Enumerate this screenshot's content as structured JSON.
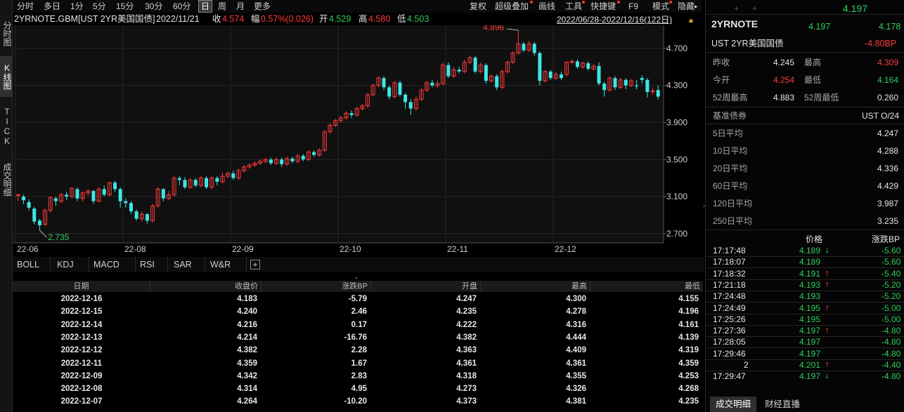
{
  "left_tabs": [
    "分时图",
    "K线图",
    "TICK",
    "成交明细"
  ],
  "toolbar": {
    "periods": [
      "分时",
      "多日",
      "1分",
      "5分",
      "15分",
      "30分",
      "60分",
      "日",
      "周",
      "月",
      "更多"
    ],
    "active_period": "日",
    "tools": [
      "复权",
      "超级叠加",
      "画线",
      "工具",
      "快捷键",
      "F9",
      "模式",
      "隐藏"
    ]
  },
  "info": {
    "symbol": "2YRNOTE.GBM[UST 2YR美国国债]",
    "date": "2022/11/21",
    "close_label": "收",
    "close": "4.574",
    "change_label": "幅",
    "change": "0.57%(0.026)",
    "open_label": "开",
    "open": "4.529",
    "high_label": "高",
    "high": "4.580",
    "low_label": "低",
    "low": "4.503",
    "range": "2022/06/28-2022/12/16(122日)"
  },
  "chart_data": {
    "type": "candlestick",
    "y_ticks": [
      "4.700",
      "4.300",
      "3.900",
      "3.500",
      "3.100",
      "2.700"
    ],
    "ylim": [
      2.6,
      4.95
    ],
    "x_ticks": [
      "22-06",
      "22-08",
      "22-09",
      "22-10",
      "22-11",
      "22-12"
    ],
    "max_label": "4.896",
    "min_label": "2.735",
    "candles": [
      [
        3.11,
        3.12,
        3.05,
        3.13
      ],
      [
        3.1,
        3.06,
        3.02,
        3.12
      ],
      [
        3.04,
        2.98,
        2.95,
        3.07
      ],
      [
        2.97,
        2.83,
        2.8,
        2.99
      ],
      [
        2.84,
        2.79,
        2.735,
        2.86
      ],
      [
        2.8,
        2.95,
        2.78,
        2.97
      ],
      [
        2.95,
        3.09,
        2.93,
        3.1
      ],
      [
        3.08,
        3.05,
        3.0,
        3.1
      ],
      [
        3.05,
        3.12,
        3.03,
        3.14
      ],
      [
        3.12,
        3.1,
        3.06,
        3.15
      ],
      [
        3.1,
        3.19,
        3.08,
        3.2
      ],
      [
        3.18,
        3.08,
        3.05,
        3.2
      ],
      [
        3.08,
        3.14,
        3.05,
        3.16
      ],
      [
        3.14,
        3.16,
        3.11,
        3.18
      ],
      [
        3.16,
        3.05,
        3.02,
        3.17
      ],
      [
        3.05,
        3.18,
        3.04,
        3.2
      ],
      [
        3.18,
        3.12,
        3.1,
        3.22
      ],
      [
        3.12,
        3.25,
        3.1,
        3.26
      ],
      [
        3.25,
        3.18,
        3.15,
        3.27
      ],
      [
        3.18,
        3.05,
        2.98,
        3.2
      ],
      [
        3.05,
        3.03,
        2.98,
        3.08
      ],
      [
        3.03,
        2.94,
        2.91,
        3.05
      ],
      [
        2.94,
        2.86,
        2.84,
        2.96
      ],
      [
        2.86,
        2.91,
        2.83,
        2.94
      ],
      [
        2.91,
        2.84,
        2.81,
        2.92
      ],
      [
        2.84,
        3.0,
        2.82,
        3.02
      ],
      [
        3.0,
        3.18,
        2.98,
        3.2
      ],
      [
        3.18,
        3.08,
        3.05,
        3.19
      ],
      [
        3.08,
        3.12,
        3.06,
        3.16
      ],
      [
        3.12,
        3.3,
        3.1,
        3.32
      ],
      [
        3.3,
        3.28,
        3.22,
        3.32
      ],
      [
        3.28,
        3.2,
        3.18,
        3.31
      ],
      [
        3.2,
        3.28,
        3.18,
        3.3
      ],
      [
        3.28,
        3.22,
        3.2,
        3.3
      ],
      [
        3.22,
        3.3,
        3.2,
        3.32
      ],
      [
        3.3,
        3.2,
        3.18,
        3.32
      ],
      [
        3.2,
        3.3,
        3.18,
        3.32
      ],
      [
        3.3,
        3.26,
        3.22,
        3.32
      ],
      [
        3.26,
        3.32,
        3.24,
        3.36
      ],
      [
        3.32,
        3.35,
        3.3,
        3.37
      ],
      [
        3.35,
        3.3,
        3.28,
        3.38
      ],
      [
        3.3,
        3.38,
        3.28,
        3.4
      ],
      [
        3.38,
        3.42,
        3.36,
        3.44
      ],
      [
        3.42,
        3.44,
        3.4,
        3.46
      ],
      [
        3.44,
        3.46,
        3.42,
        3.48
      ],
      [
        3.46,
        3.48,
        3.44,
        3.5
      ],
      [
        3.48,
        3.5,
        3.46,
        3.52
      ],
      [
        3.5,
        3.46,
        3.44,
        3.52
      ],
      [
        3.46,
        3.5,
        3.44,
        3.52
      ],
      [
        3.5,
        3.45,
        3.42,
        3.52
      ],
      [
        3.45,
        3.51,
        3.43,
        3.53
      ],
      [
        3.51,
        3.48,
        3.46,
        3.53
      ],
      [
        3.48,
        3.54,
        3.46,
        3.56
      ],
      [
        3.54,
        3.5,
        3.48,
        3.56
      ],
      [
        3.5,
        3.58,
        3.48,
        3.6
      ],
      [
        3.58,
        3.55,
        3.53,
        3.6
      ],
      [
        3.55,
        3.6,
        3.53,
        3.62
      ],
      [
        3.6,
        3.8,
        3.58,
        3.82
      ],
      [
        3.8,
        3.87,
        3.78,
        3.89
      ],
      [
        3.87,
        3.92,
        3.85,
        3.94
      ],
      [
        3.92,
        3.95,
        3.9,
        3.97
      ],
      [
        3.95,
        4.0,
        3.93,
        4.02
      ],
      [
        4.0,
        3.98,
        3.95,
        4.03
      ],
      [
        3.98,
        4.05,
        3.96,
        4.07
      ],
      [
        4.05,
        4.08,
        4.03,
        4.1
      ],
      [
        4.08,
        4.2,
        4.06,
        4.22
      ],
      [
        4.2,
        4.3,
        4.18,
        4.32
      ],
      [
        4.3,
        4.38,
        4.28,
        4.4
      ],
      [
        4.38,
        4.28,
        4.25,
        4.4
      ],
      [
        4.28,
        4.18,
        4.15,
        4.3
      ],
      [
        4.18,
        4.33,
        4.16,
        4.35
      ],
      [
        4.33,
        4.2,
        4.18,
        4.35
      ],
      [
        4.2,
        4.12,
        4.05,
        4.22
      ],
      [
        4.12,
        4.05,
        3.98,
        4.15
      ],
      [
        4.05,
        4.15,
        4.03,
        4.18
      ],
      [
        4.15,
        4.25,
        4.13,
        4.27
      ],
      [
        4.25,
        4.33,
        4.23,
        4.35
      ],
      [
        4.33,
        4.3,
        4.28,
        4.36
      ],
      [
        4.3,
        4.32,
        4.28,
        4.35
      ],
      [
        4.32,
        4.52,
        4.3,
        4.55
      ],
      [
        4.52,
        4.4,
        4.38,
        4.55
      ],
      [
        4.4,
        4.47,
        4.38,
        4.5
      ],
      [
        4.47,
        4.45,
        4.43,
        4.5
      ],
      [
        4.45,
        4.55,
        4.43,
        4.58
      ],
      [
        4.55,
        4.6,
        4.53,
        4.62
      ],
      [
        4.6,
        4.45,
        4.43,
        4.62
      ],
      [
        4.45,
        4.52,
        4.43,
        4.55
      ],
      [
        4.52,
        4.35,
        4.32,
        4.54
      ],
      [
        4.35,
        4.4,
        4.33,
        4.42
      ],
      [
        4.4,
        4.28,
        4.25,
        4.42
      ],
      [
        4.28,
        4.45,
        4.26,
        4.47
      ],
      [
        4.45,
        4.55,
        4.43,
        4.57
      ],
      [
        4.55,
        4.65,
        4.53,
        4.67
      ],
      [
        4.65,
        4.75,
        4.63,
        4.896
      ],
      [
        4.75,
        4.68,
        4.66,
        4.77
      ],
      [
        4.68,
        4.75,
        4.66,
        4.78
      ],
      [
        4.75,
        4.65,
        4.62,
        4.77
      ],
      [
        4.65,
        4.35,
        4.3,
        4.67
      ],
      [
        4.35,
        4.45,
        4.33,
        4.47
      ],
      [
        4.45,
        4.38,
        4.36,
        4.47
      ],
      [
        4.38,
        4.42,
        4.36,
        4.45
      ],
      [
        4.42,
        4.38,
        4.36,
        4.45
      ],
      [
        4.42,
        4.55,
        4.4,
        4.56
      ],
      [
        4.55,
        4.56,
        4.53,
        4.58
      ],
      [
        4.56,
        4.5,
        4.48,
        4.58
      ],
      [
        4.5,
        4.54,
        4.48,
        4.56
      ],
      [
        4.54,
        4.48,
        4.46,
        4.56
      ],
      [
        4.48,
        4.51,
        4.46,
        4.53
      ],
      [
        4.51,
        4.32,
        4.3,
        4.55
      ],
      [
        4.32,
        4.25,
        4.18,
        4.34
      ],
      [
        4.25,
        4.38,
        4.23,
        4.4
      ],
      [
        4.38,
        4.28,
        4.25,
        4.4
      ],
      [
        4.28,
        4.36,
        4.26,
        4.38
      ],
      [
        4.36,
        4.3,
        4.26,
        4.38
      ],
      [
        4.3,
        4.35,
        4.28,
        4.37
      ],
      [
        4.3,
        4.29,
        4.26,
        4.36
      ],
      [
        4.38,
        4.36,
        4.32,
        4.41
      ],
      [
        4.36,
        4.23,
        4.17,
        4.38
      ],
      [
        4.24,
        4.24,
        4.2,
        4.28
      ],
      [
        4.25,
        4.18,
        4.15,
        4.3
      ]
    ]
  },
  "indicator_tabs": [
    "BOLL",
    "KDJ",
    "MACD",
    "RSI",
    "SAR",
    "W&R"
  ],
  "table": {
    "headers": [
      "日期",
      "收盘价",
      "涨跌BP",
      "开盘",
      "最高",
      "最低"
    ],
    "rows": [
      [
        "2022-12-16",
        "4.183",
        "-5.79",
        "4.247",
        "4.300",
        "4.155"
      ],
      [
        "2022-12-15",
        "4.240",
        "2.46",
        "4.235",
        "4.278",
        "4.196"
      ],
      [
        "2022-12-14",
        "4.216",
        "0.17",
        "4.222",
        "4.316",
        "4.161"
      ],
      [
        "2022-12-13",
        "4.214",
        "-16.76",
        "4.382",
        "4.444",
        "4.139"
      ],
      [
        "2022-12-12",
        "4.382",
        "2.28",
        "4.363",
        "4.409",
        "4.319"
      ],
      [
        "2022-12-11",
        "4.359",
        "1.67",
        "4.361",
        "4.361",
        "4.359"
      ],
      [
        "2022-12-09",
        "4.342",
        "2.83",
        "4.318",
        "4.355",
        "4.253"
      ],
      [
        "2022-12-08",
        "4.314",
        "4.95",
        "4.273",
        "4.326",
        "4.268"
      ],
      [
        "2022-12-07",
        "4.264",
        "-10.20",
        "4.373",
        "4.381",
        "4.235"
      ]
    ]
  },
  "right": {
    "top_price": "4.197",
    "name": "2YRNOTE",
    "bid": "4.197",
    "ask": "4.178",
    "fullname": "UST 2YR美国国债",
    "change_bp": "-4.80BP",
    "prev_close_label": "昨收",
    "prev_close": "4.245",
    "high_label": "最高",
    "high": "4.309",
    "open_label": "今开",
    "open": "4.254",
    "low_label": "最低",
    "low": "4.164",
    "w52h_label": "52周最高",
    "w52h": "4.883",
    "w52l_label": "52周最低",
    "w52l": "0.260",
    "bench_label": "基准债券",
    "bench": "UST O/24",
    "ma": [
      {
        "label": "5日平均",
        "value": "4.247"
      },
      {
        "label": "10日平均",
        "value": "4.288"
      },
      {
        "label": "20日平均",
        "value": "4.336"
      },
      {
        "label": "60日平均",
        "value": "4.429"
      },
      {
        "label": "120日平均",
        "value": "3.987"
      },
      {
        "label": "250日平均",
        "value": "3.235"
      }
    ],
    "ticks_header": {
      "price": "价格",
      "chg": "涨跌BP"
    },
    "ticks": [
      {
        "time": "17:17:48",
        "price": "4.189",
        "dir": "down",
        "chg": "-5.60"
      },
      {
        "time": "17:18:07",
        "price": "4.189",
        "dir": "",
        "chg": "-5.60"
      },
      {
        "time": "17:18:32",
        "price": "4.191",
        "dir": "up",
        "chg": "-5.40"
      },
      {
        "time": "17:21:18",
        "price": "4.193",
        "dir": "up",
        "chg": "-5.20"
      },
      {
        "time": "17:24:48",
        "price": "4.193",
        "dir": "",
        "chg": "-5.20"
      },
      {
        "time": "17:24:49",
        "price": "4.195",
        "dir": "up",
        "chg": "-5.00"
      },
      {
        "time": "17:25:26",
        "price": "4.195",
        "dir": "",
        "chg": "-5.00"
      },
      {
        "time": "17:27:36",
        "price": "4.197",
        "dir": "up",
        "chg": "-4.80"
      },
      {
        "time": "17:28:05",
        "price": "4.197",
        "dir": "",
        "chg": "-4.80"
      },
      {
        "time": "17:29:46",
        "price": "4.197",
        "dir": "",
        "chg": "-4.80"
      },
      {
        "time": "2",
        "price": "4.201",
        "dir": "up",
        "chg": "-4.40"
      },
      {
        "time": "17:29:47",
        "price": "4.197",
        "dir": "down",
        "chg": "-4.80"
      }
    ],
    "bottom_tabs": [
      "成交明细",
      "财经直播"
    ]
  }
}
